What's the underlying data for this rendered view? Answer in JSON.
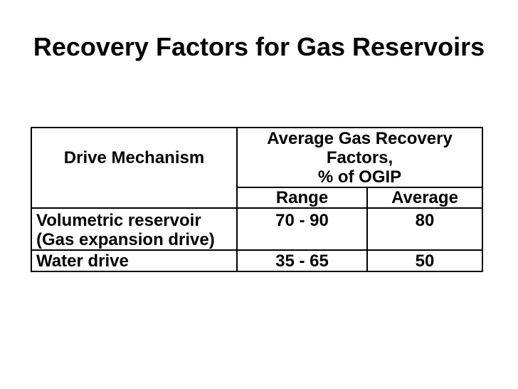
{
  "slide": {
    "title": "Recovery Factors for Gas Reservoirs",
    "background_color": "#ffffff",
    "text_color": "#000000",
    "border_color": "#000000"
  },
  "table": {
    "col1_header": "Drive Mechanism",
    "group_header": "Average Gas Recovery\nFactors,\n% of OGIP",
    "subheaders": {
      "range": "Range",
      "average": "Average"
    },
    "rows": [
      {
        "mechanism": "Volumetric reservoir\n(Gas expansion drive)",
        "range": "70 - 90",
        "average": "80"
      },
      {
        "mechanism": "Water drive",
        "range": "35 - 65",
        "average": "50"
      }
    ]
  },
  "chart_data": {
    "type": "table",
    "title": "Recovery Factors for Gas Reservoirs",
    "columns": [
      "Drive Mechanism",
      "Average Gas Recovery Factors, % of OGIP - Range",
      "Average Gas Recovery Factors, % of OGIP - Average"
    ],
    "records": [
      {
        "drive_mechanism": "Volumetric reservoir (Gas expansion drive)",
        "range": "70 - 90",
        "average": 80
      },
      {
        "drive_mechanism": "Water drive",
        "range": "35 - 65",
        "average": 50
      }
    ]
  }
}
